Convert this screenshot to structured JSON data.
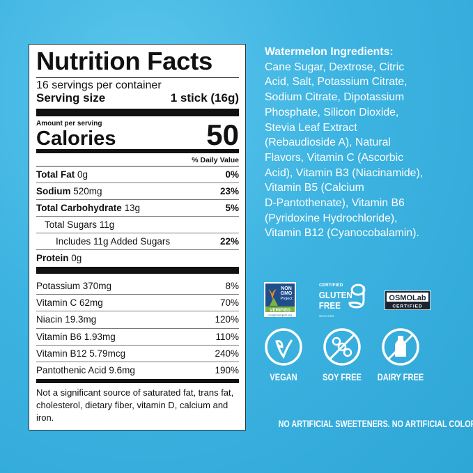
{
  "label": {
    "title": "Nutrition Facts",
    "servings": "16 servings per container",
    "serving_size_label": "Serving size",
    "serving_size_value": "1 stick (16g)",
    "amount_per_serving": "Amount per serving",
    "calories_label": "Calories",
    "calories_value": "50",
    "daily_value_header": "% Daily Value",
    "nutrients": [
      {
        "name": "Total Fat",
        "amount": "0g",
        "dv": "0%"
      },
      {
        "name": "Sodium",
        "amount": "520mg",
        "dv": "23%"
      },
      {
        "name": "Total Carbohydrate",
        "amount": "13g",
        "dv": "5%"
      },
      {
        "name": "Total Sugars 11g",
        "amount": "",
        "dv": ""
      },
      {
        "name": "Includes 11g Added Sugars",
        "amount": "",
        "dv": "22%"
      },
      {
        "name": "Protein",
        "amount": "0g",
        "dv": ""
      }
    ],
    "vitamins": [
      {
        "name": "Potassium 370mg",
        "dv": "8%"
      },
      {
        "name": "Vitamin C 62mg",
        "dv": "70%"
      },
      {
        "name": "Niacin 19.3mg",
        "dv": "120%"
      },
      {
        "name": "Vitamin B6 1.93mg",
        "dv": "110%"
      },
      {
        "name": "Vitamin B12 5.79mcg",
        "dv": "240%"
      },
      {
        "name": "Pantothenic Acid 9.6mg",
        "dv": "190%"
      }
    ],
    "footnote": "Not a significant source of saturated fat, trans fat, cholesterol, dietary fiber, vitamin D, calcium and iron."
  },
  "ingredients": {
    "heading": "Watermelon Ingredients:",
    "lines": [
      "Cane Sugar, Dextrose, Citric",
      "Acid, Salt, Potassium Citrate,",
      "Sodium Citrate, Dipotassium",
      "Phosphate, Silicon Dioxide,",
      "Stevia Leaf Extract",
      "(Rebaudioside A), Natural",
      "Flavors, Vitamin C (Ascorbic",
      "Acid), Vitamin B3 (Niacinamide),",
      "Vitamin B5 (Calcium",
      "D-Pantothenate), Vitamin B6",
      "(Pyridoxine Hydrochloride),",
      "Vitamin B12 (Cyanocobalamin)."
    ]
  },
  "badges": {
    "nongmo": {
      "line1": "NON",
      "line2": "GMO",
      "line3": "Project",
      "verified": "VERIFIED",
      "url": "nongmoproject.org"
    },
    "gluten": {
      "certified": "CERTIFIED",
      "line1": "GLUTEN",
      "line2": "FREE",
      "url": "GFCO.ORG"
    },
    "osmo": {
      "name": "OSMOLab",
      "certified": "CERTIFIED"
    }
  },
  "claims": [
    {
      "label": "VEGAN",
      "icon": "leaf-icon"
    },
    {
      "label": "SOY FREE",
      "icon": "no-soy-icon"
    },
    {
      "label": "DAIRY FREE",
      "icon": "no-milk-icon"
    }
  ],
  "bottom_text": "NO ARTIFICIAL SWEETENERS. NO ARTIFICIAL COLORS.",
  "colors": {
    "background": "#3db3e1",
    "label_bg": "#ffffff",
    "text": "#ffffff"
  }
}
